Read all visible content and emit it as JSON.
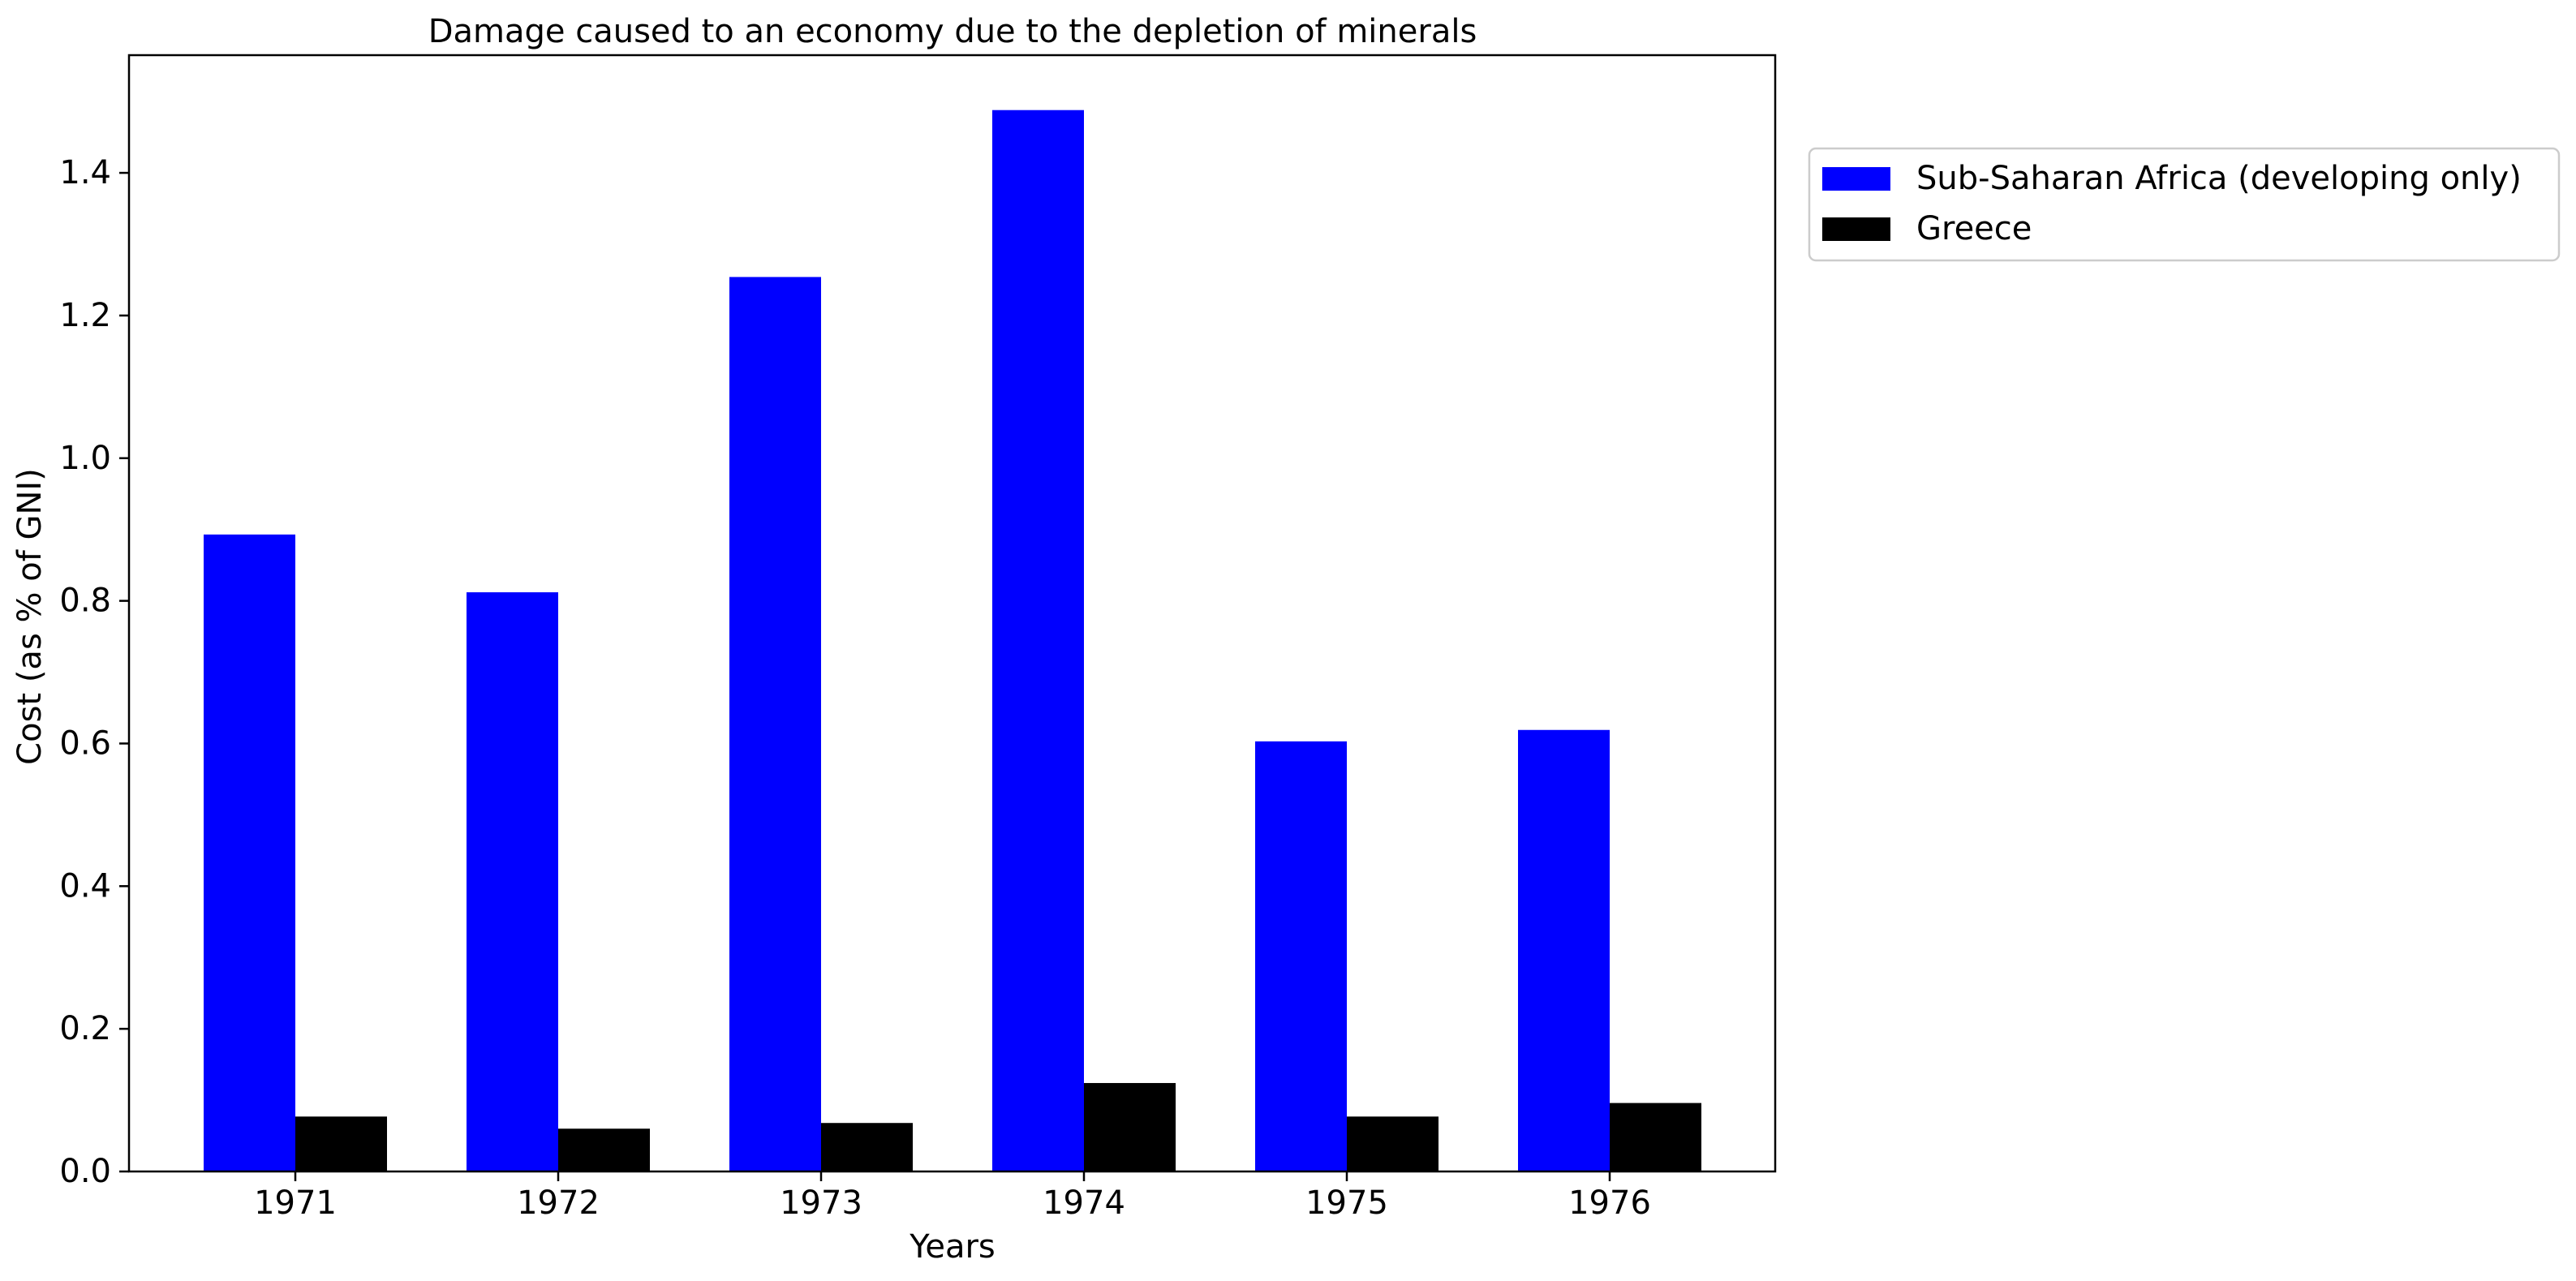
{
  "chart_data": {
    "type": "bar",
    "title": "Damage caused to an economy due to the depletion of minerals",
    "xlabel": "Years",
    "ylabel": "Cost (as % of GNI)",
    "categories": [
      "1971",
      "1972",
      "1973",
      "1974",
      "1975",
      "1976"
    ],
    "series": [
      {
        "name": "Sub-Saharan Africa (developing only)",
        "color": "#0000ff",
        "values": [
          0.893,
          0.812,
          1.254,
          1.488,
          0.603,
          0.619
        ]
      },
      {
        "name": "Greece",
        "color": "#000000",
        "values": [
          0.077,
          0.06,
          0.068,
          0.124,
          0.077,
          0.096
        ]
      }
    ],
    "ylim": [
      0,
      1.565
    ],
    "yticks": [
      0.0,
      0.2,
      0.4,
      0.6,
      0.8,
      1.0,
      1.2,
      1.4
    ],
    "ytick_labels": [
      "0.0",
      "0.2",
      "0.4",
      "0.6",
      "0.8",
      "1.0",
      "1.2",
      "1.4"
    ],
    "grid": false,
    "legend_position": "outside-top-right"
  }
}
